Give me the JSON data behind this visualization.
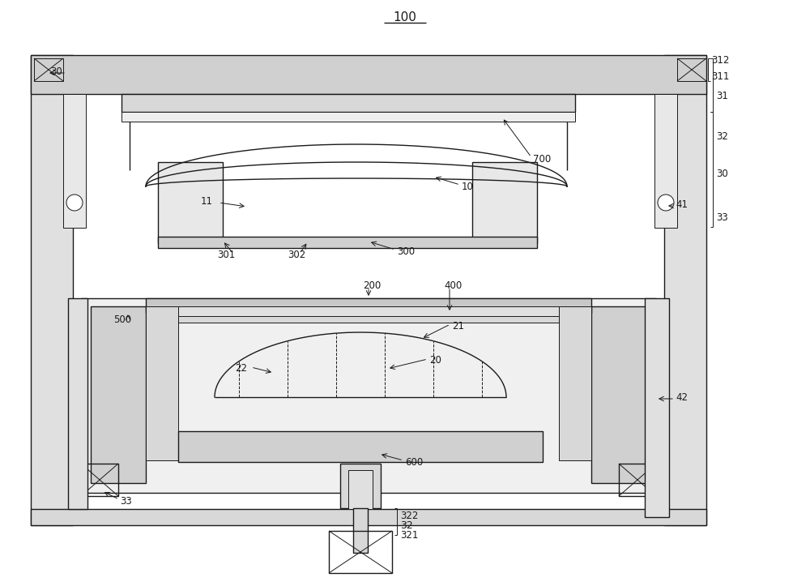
{
  "bg": "#ffffff",
  "lc": "#1a1a1a",
  "fc_light": "#f0f0f0",
  "fc_mid": "#d8d8d8",
  "fc_dark": "#b8b8b8",
  "lw_thin": 0.7,
  "lw_med": 1.0,
  "lw_thick": 1.5,
  "fs": 8.5
}
